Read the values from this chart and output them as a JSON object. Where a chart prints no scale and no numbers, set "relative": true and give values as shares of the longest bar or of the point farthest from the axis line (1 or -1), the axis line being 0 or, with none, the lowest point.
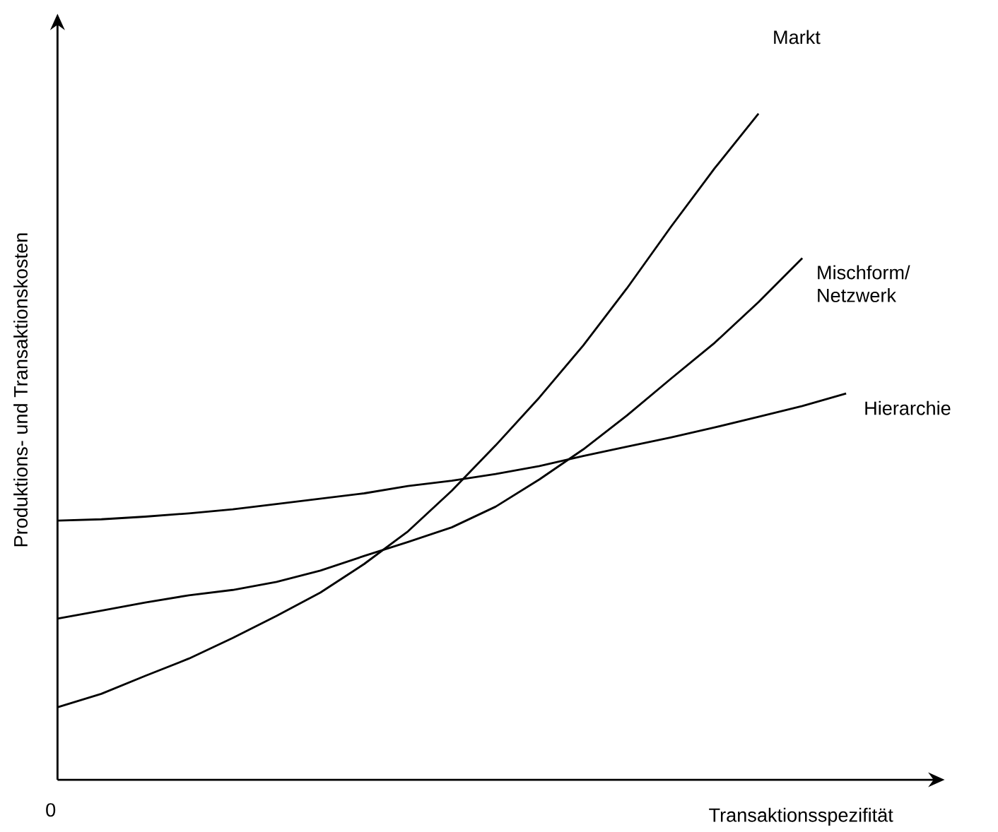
{
  "chart_data": {
    "type": "line",
    "relative": true,
    "xlabel": "Transaktionsspezifität",
    "ylabel": "Produktions- und Transaktionskosten",
    "annotations": [
      "0"
    ],
    "marker": "none",
    "line_style": "solid",
    "categories": [
      null,
      null,
      null,
      null,
      null,
      null,
      null,
      null,
      null,
      null,
      null,
      null,
      null,
      null,
      null,
      null,
      null,
      null,
      null
    ],
    "series": [
      {
        "name": "Markt",
        "color": "#000000",
        "values": [
          0.109,
          0.129,
          0.156,
          0.182,
          0.213,
          0.246,
          0.281,
          0.324,
          0.373,
          0.434,
          0.502,
          0.574,
          0.652,
          0.738,
          0.83,
          0.918,
          1,
          null,
          null
        ]
      },
      {
        "name": "Mischform/ Netzwerk",
        "color": "#000000",
        "values": [
          0.242,
          0.254,
          0.266,
          0.277,
          0.285,
          0.297,
          0.314,
          0.336,
          0.357,
          0.379,
          0.41,
          0.451,
          0.496,
          0.547,
          0.602,
          0.656,
          0.717,
          0.783,
          null
        ]
      },
      {
        "name": "Hierarchie",
        "color": "#000000",
        "values": [
          0.389,
          0.391,
          0.395,
          0.4,
          0.406,
          0.414,
          0.422,
          0.43,
          0.441,
          0.449,
          0.459,
          0.471,
          0.486,
          0.5,
          0.514,
          0.529,
          0.545,
          0.561,
          0.58
        ]
      }
    ]
  }
}
